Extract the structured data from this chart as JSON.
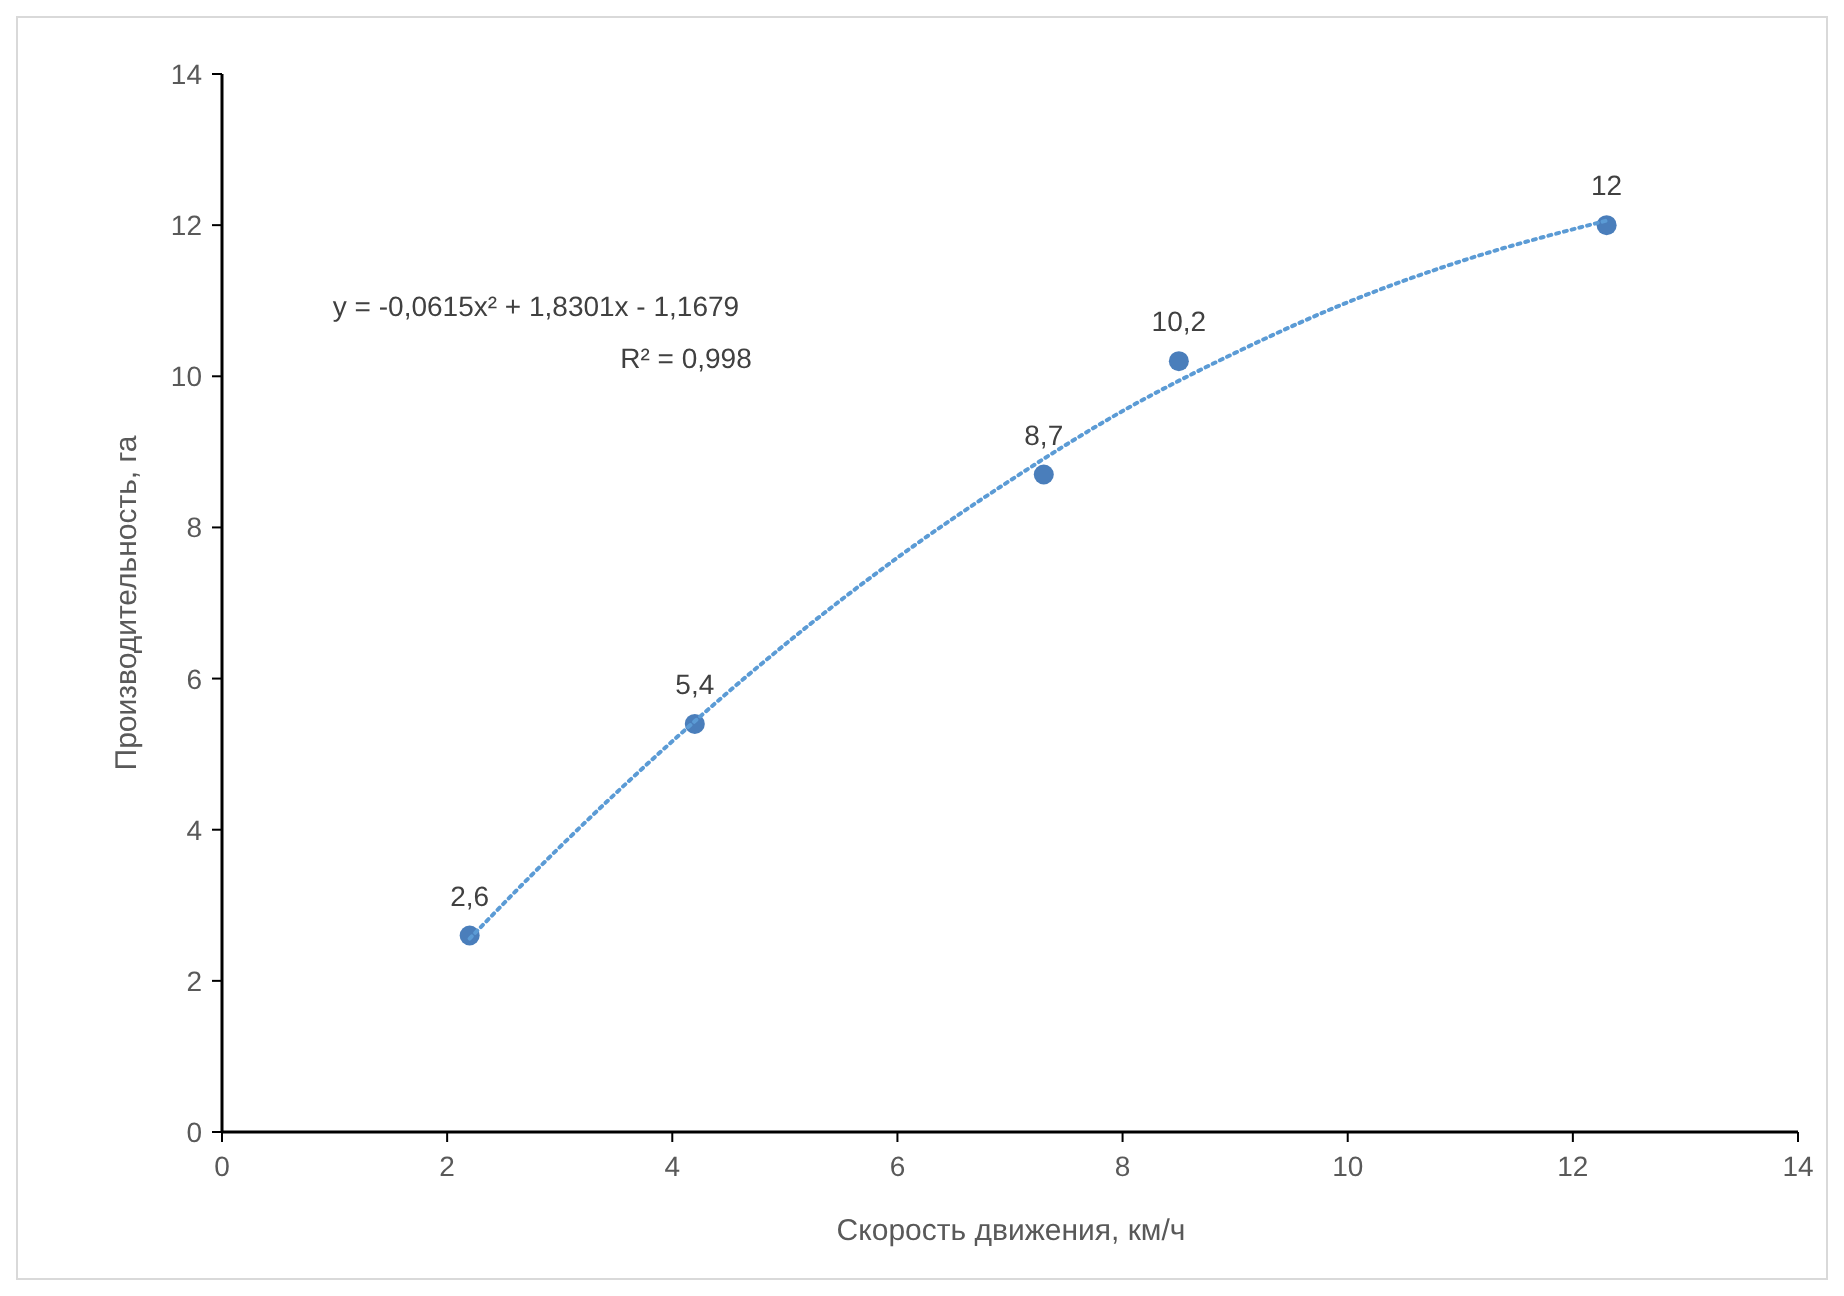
{
  "chart_data": {
    "type": "scatter",
    "xlabel": "Скорость движения,  км/ч",
    "ylabel": "Производительность, га",
    "xlim": [
      0,
      14
    ],
    "xticks": [
      0,
      2,
      4,
      6,
      8,
      10,
      12,
      14
    ],
    "ylim": [
      0,
      14
    ],
    "yticks": [
      0,
      2,
      4,
      6,
      8,
      10,
      12,
      14
    ],
    "grid": false,
    "marker": "circle",
    "series": [
      {
        "color": "#4a7ebb",
        "x": [
          2.2,
          4.2,
          7.3,
          8.5,
          12.3
        ],
        "values": [
          2.6,
          5.4,
          8.7,
          10.2,
          12
        ],
        "value_labels": [
          "2,6",
          "5,4",
          "8,7",
          "10,2",
          "12"
        ]
      },
      {
        "type": "line",
        "color": "#5b9bd5",
        "line_style": "dotted",
        "marker": "none",
        "x": [
          2.2,
          3,
          4,
          5,
          6,
          7,
          8,
          9,
          10,
          11,
          12.3
        ],
        "values": [
          2.56,
          3.77,
          5.17,
          6.45,
          7.6,
          8.62,
          9.54,
          10.31,
          10.98,
          11.52,
          12.06
        ]
      }
    ],
    "annotations": [
      "y = -0,0615x² + 1,8301x - 1,1679",
      "R² = 0,998"
    ]
  }
}
